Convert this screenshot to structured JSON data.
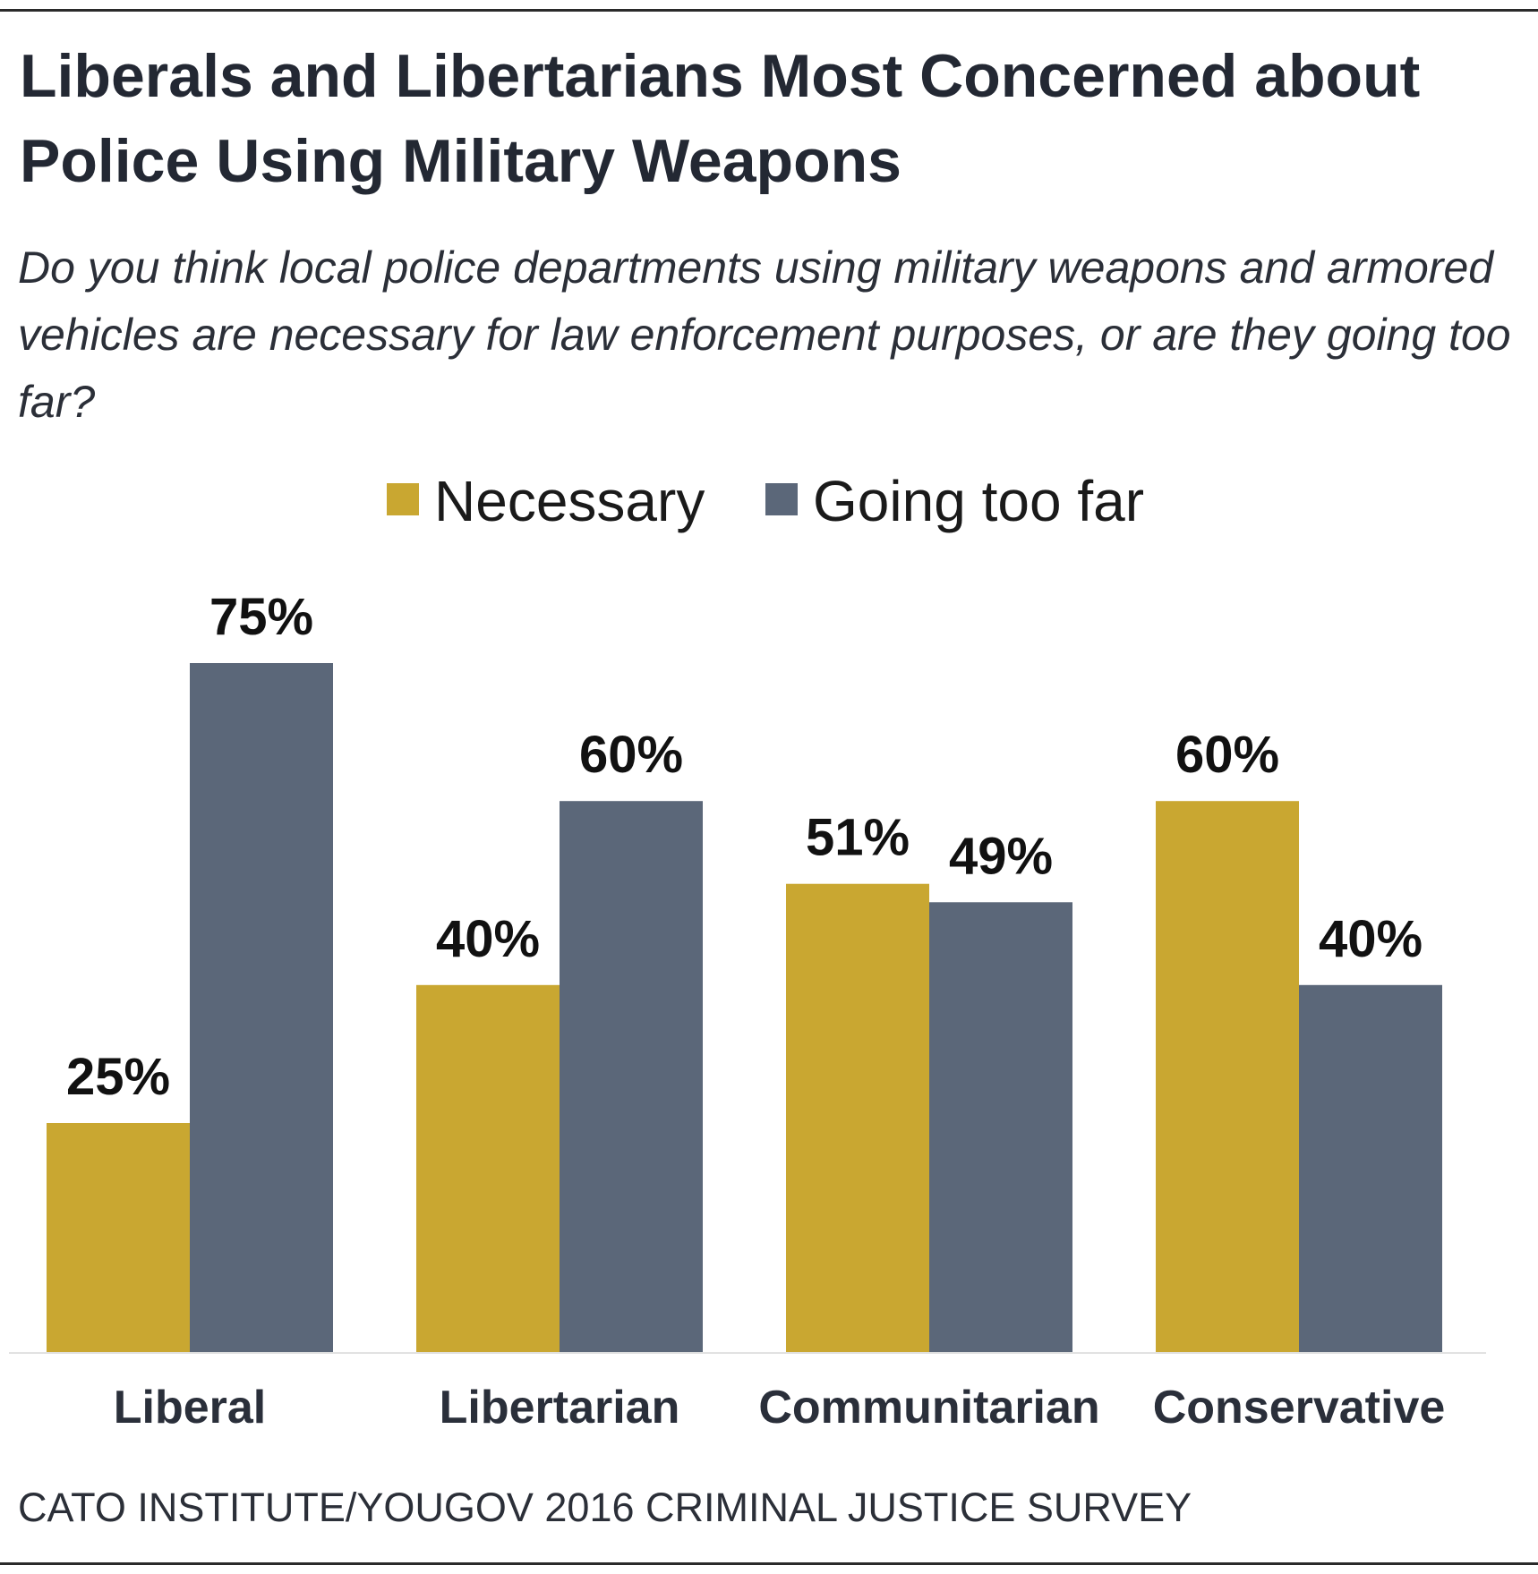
{
  "chart_data": {
    "type": "bar",
    "title": "Liberals and Libertarians Most Concerned about Police Using Military Weapons",
    "subtitle": "Do you think local police departments using military weapons and armored vehicles are necessary for law enforcement purposes, or are they going too far?",
    "source": "CATO INSTITUTE/YOUGOV 2016 CRIMINAL JUSTICE SURVEY",
    "categories": [
      "Liberal",
      "Libertarian",
      "Communitarian",
      "Conservative"
    ],
    "series": [
      {
        "name": "Necessary",
        "color": "#c9a731",
        "values": [
          25,
          40,
          51,
          60
        ],
        "labels": [
          "25%",
          "40%",
          "51%",
          "60%"
        ]
      },
      {
        "name": "Going too far",
        "color": "#5b6779",
        "values": [
          75,
          60,
          49,
          40
        ],
        "labels": [
          "75%",
          "60%",
          "49%",
          "40%"
        ]
      }
    ],
    "ylim": [
      0,
      100
    ],
    "grid": false,
    "legend": "top-center",
    "xlabel": "",
    "ylabel": ""
  }
}
